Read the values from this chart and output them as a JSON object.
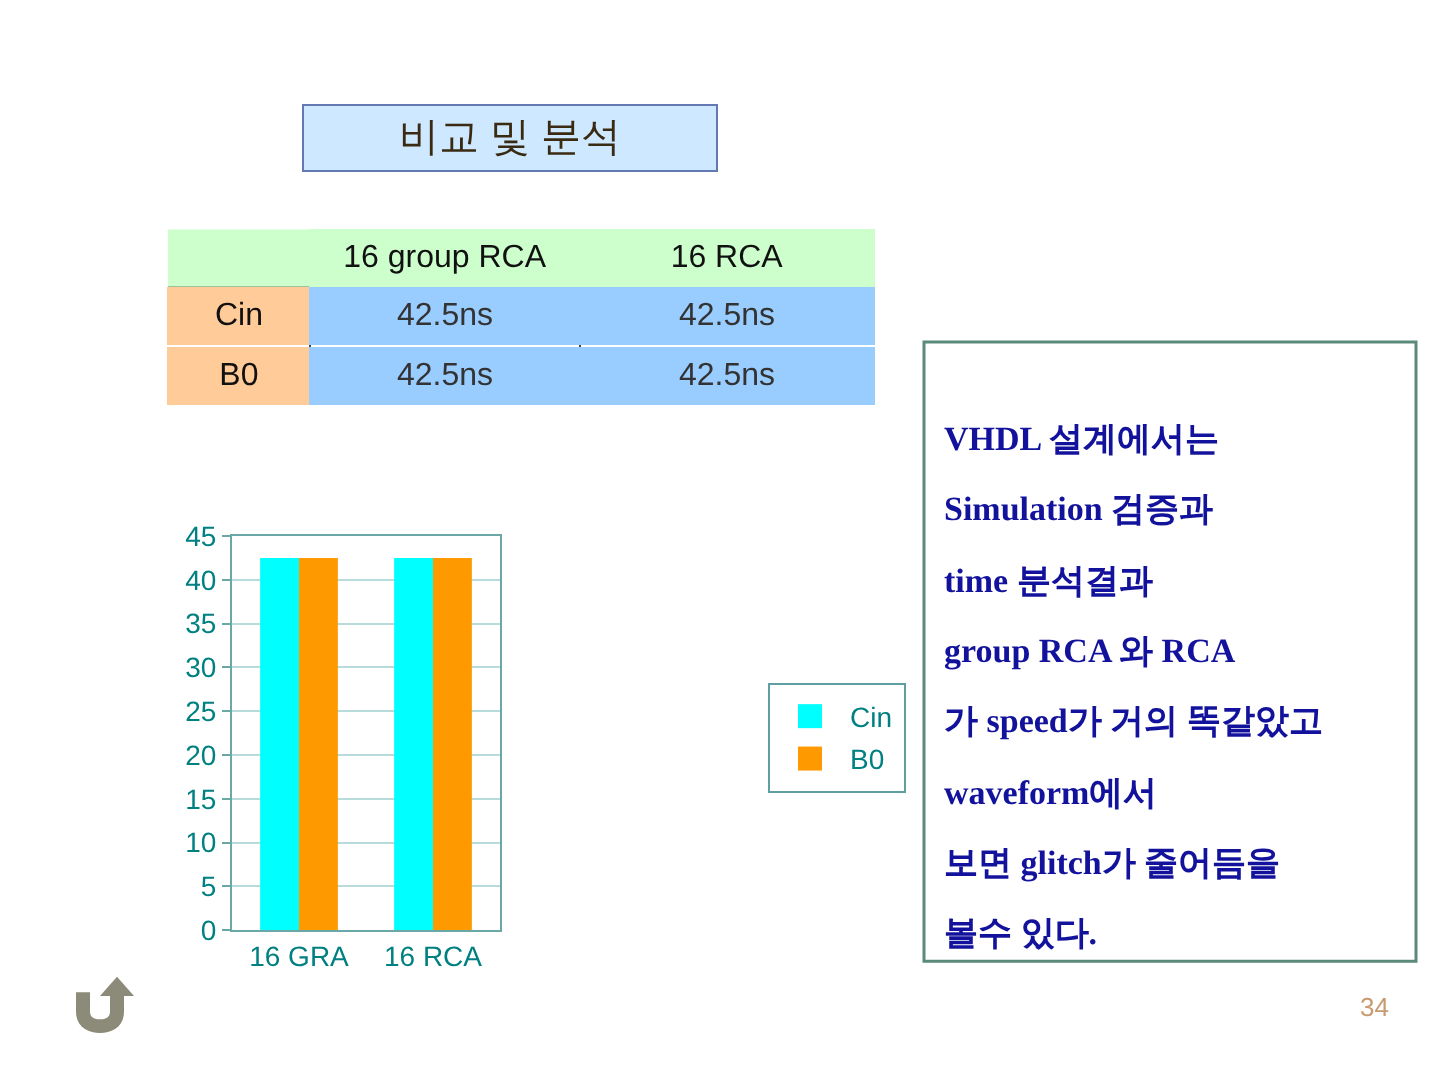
{
  "chart_data": {
    "type": "bar",
    "title": "비교 및 분석",
    "categories": [
      "16 GRA",
      "16 RCA"
    ],
    "series": [
      {
        "name": "Cin",
        "color": "#00ffff",
        "values": [
          42.5,
          42.5
        ]
      },
      {
        "name": "B0",
        "color": "#ff9900",
        "values": [
          42.5,
          42.5
        ]
      }
    ],
    "ylim": [
      0,
      45
    ],
    "yticks": [
      0,
      5,
      10,
      15,
      20,
      25,
      30,
      35,
      40,
      45
    ],
    "grid": "y",
    "legend": "right",
    "annotations": [
      "16 group RCA",
      "16 RCA",
      "42.5ns",
      "42.5ns",
      "42.5ns",
      "42.5ns",
      "VHDL 설계에서는\nSimulation 검증과\ntime 분석결과\ngroup RCA 와 RCA\n가 speed가 거의 똑같았고\nwaveform에서\n보면 glitch가 줄어듬을\n볼수 있다.",
      "34"
    ]
  }
}
